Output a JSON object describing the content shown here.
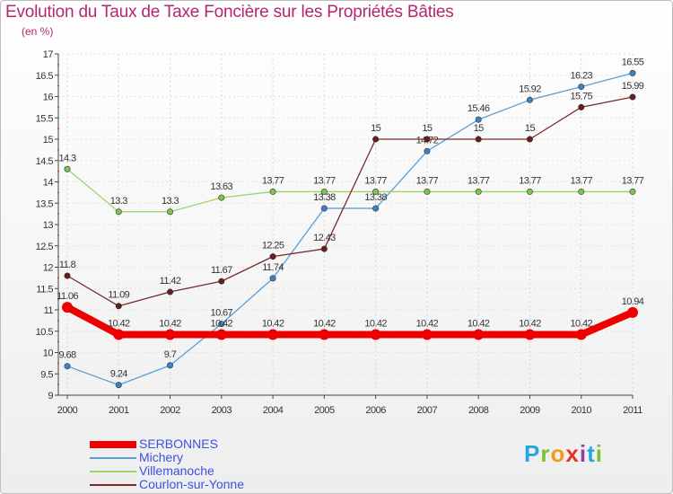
{
  "chart_data": {
    "type": "line",
    "title": "Evolution du Taux de Taxe Foncière sur les Propriétés Bâties",
    "subtitle": "(en %)",
    "categories": [
      "2000",
      "2001",
      "2002",
      "2003",
      "2004",
      "2005",
      "2006",
      "2007",
      "2008",
      "2009",
      "2010",
      "2011"
    ],
    "ylim": [
      9,
      17
    ],
    "yticks": [
      "9",
      "9.5",
      "10",
      "10.5",
      "11",
      "11.5",
      "12",
      "12.5",
      "13",
      "13.5",
      "14",
      "14.5",
      "15",
      "15.5",
      "16",
      "16.5",
      "17"
    ],
    "series": [
      {
        "name": "Michery",
        "color": "#5a9fd4",
        "dot": "#3a83c4",
        "values": [
          9.68,
          9.24,
          9.7,
          10.67,
          11.74,
          13.38,
          13.38,
          14.72,
          15.46,
          15.92,
          16.23,
          16.55
        ],
        "labels": [
          "9.68",
          "9.24",
          "9.7",
          "10.67",
          "11.74",
          "13.38",
          "13.38",
          "14.72",
          "15.46",
          "15.92",
          "16.23",
          "16.55"
        ]
      },
      {
        "name": "Villemanoche",
        "color": "#9bd56a",
        "dot": "#7cc64b",
        "values": [
          14.3,
          13.3,
          13.3,
          13.63,
          13.77,
          13.77,
          13.77,
          13.77,
          13.77,
          13.77,
          13.77,
          13.77
        ],
        "labels": [
          "14.3",
          "13.3",
          "13.3",
          "13.63",
          "13.77",
          "13.77",
          "13.77",
          "13.77",
          "13.77",
          "13.77",
          "13.77",
          "13.77"
        ]
      },
      {
        "name": "Courlon-sur-Yonne",
        "color": "#7a2a2a",
        "dot": "#6b1c1c",
        "values": [
          11.8,
          11.09,
          11.42,
          11.67,
          12.25,
          12.43,
          15,
          15,
          15,
          15,
          15.75,
          15.99
        ],
        "labels": [
          "11.8",
          "11.09",
          "11.42",
          "11.67",
          "12.25",
          "12.43",
          "15",
          "15",
          "15",
          "15",
          "15.75",
          "15.99"
        ]
      },
      {
        "name": "SERBONNES",
        "color": "#ee0000",
        "dot": "#ee0000",
        "values": [
          11.06,
          10.42,
          10.42,
          10.42,
          10.42,
          10.42,
          10.42,
          10.42,
          10.42,
          10.42,
          10.42,
          10.94
        ],
        "labels": [
          "11.06",
          "10.42",
          "10.42",
          "10.42",
          "10.42",
          "10.42",
          "10.42",
          "10.42",
          "10.42",
          "10.42",
          "10.42",
          "10.94"
        ]
      }
    ]
  },
  "legend": {
    "items": [
      {
        "label": "SERBONNES",
        "color": "#ee0000"
      },
      {
        "label": "Michery",
        "color": "#5a9fd4"
      },
      {
        "label": "Villemanoche",
        "color": "#9bd56a"
      },
      {
        "label": "Courlon-sur-Yonne",
        "color": "#7a2a2a"
      }
    ]
  },
  "logo": {
    "text": "Proxiti"
  }
}
